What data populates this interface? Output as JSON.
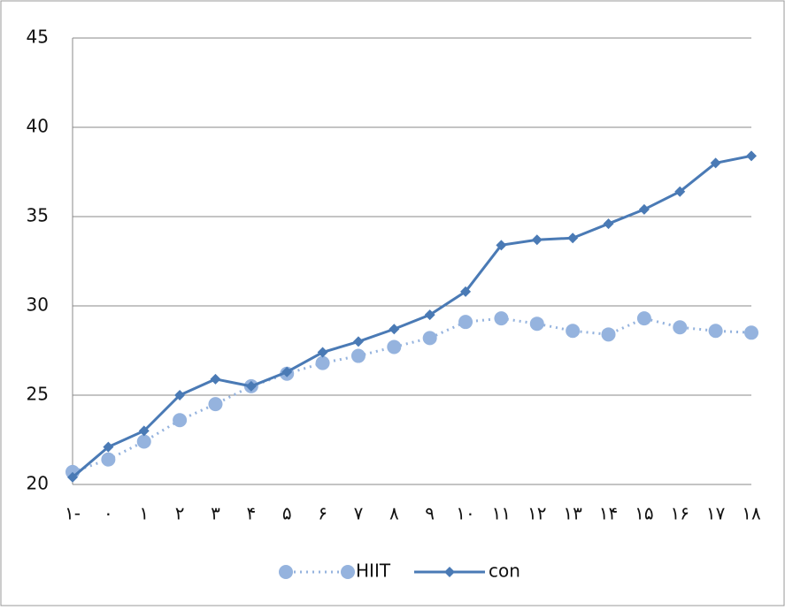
{
  "chart_data": {
    "type": "line",
    "categories": [
      "۱-",
      "۰",
      "۱",
      "۲",
      "۳",
      "۴",
      "۵",
      "۶",
      "۷",
      "۸",
      "۹",
      "۱۰",
      "۱۱",
      "۱۲",
      "۱۳",
      "۱۴",
      "۱۵",
      "۱۶",
      "۱۷",
      "۱۸"
    ],
    "series": [
      {
        "name": "HIIT",
        "color": "#95b3de",
        "values": [
          20.7,
          21.4,
          22.4,
          23.6,
          24.5,
          25.5,
          26.2,
          26.8,
          27.2,
          27.7,
          28.2,
          29.1,
          29.3,
          29.0,
          28.6,
          28.4,
          29.3,
          28.8,
          28.6,
          28.5
        ]
      },
      {
        "name": "con",
        "color": "#4a7ab5",
        "values": [
          20.4,
          22.1,
          23.0,
          25.0,
          25.9,
          25.5,
          26.3,
          27.4,
          28.0,
          28.7,
          29.5,
          30.8,
          33.4,
          33.7,
          33.8,
          34.6,
          35.4,
          36.4,
          38.0,
          38.4
        ]
      }
    ],
    "ylim": [
      20,
      45
    ],
    "yticks": [
      20,
      25,
      30,
      35,
      40,
      45
    ],
    "grid": true,
    "legend": "bottom"
  }
}
